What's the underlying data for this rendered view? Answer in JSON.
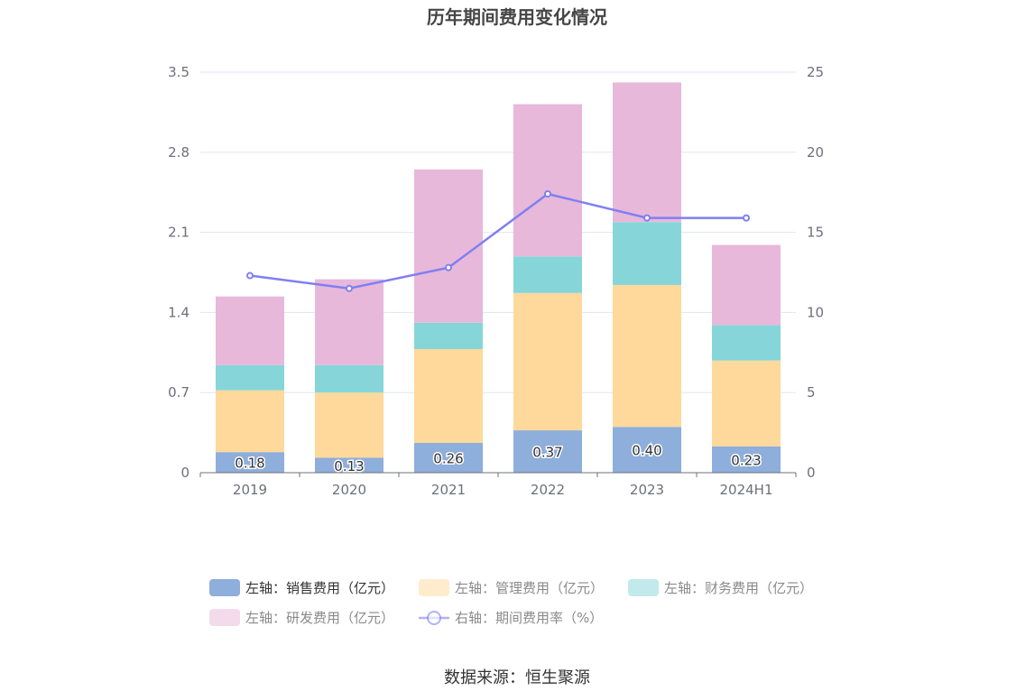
{
  "chart_data": {
    "type": "bar",
    "stacked": true,
    "title": "历年期间费用变化情况",
    "categories": [
      "2019",
      "2020",
      "2021",
      "2022",
      "2023",
      "2024H1"
    ],
    "series": [
      {
        "name": "左轴：销售费用（亿元）",
        "axis": "left",
        "type": "bar",
        "color": "#8eaedb",
        "values": [
          0.18,
          0.13,
          0.26,
          0.37,
          0.4,
          0.23
        ],
        "show_labels": true
      },
      {
        "name": "左轴：管理费用（亿元）",
        "axis": "left",
        "type": "bar",
        "color": "#fed99b",
        "values": [
          0.54,
          0.57,
          0.82,
          1.2,
          1.24,
          0.75
        ]
      },
      {
        "name": "左轴：财务费用（亿元）",
        "axis": "left",
        "type": "bar",
        "color": "#86d6d9",
        "values": [
          0.22,
          0.24,
          0.23,
          0.32,
          0.55,
          0.31
        ]
      },
      {
        "name": "左轴：研发费用（亿元）",
        "axis": "left",
        "type": "bar",
        "color": "#e7b8da",
        "values": [
          0.6,
          0.75,
          1.34,
          1.33,
          1.22,
          0.7
        ]
      },
      {
        "name": "右轴：期间费用率（%）",
        "axis": "right",
        "type": "line",
        "color": "#7f7ff2",
        "values": [
          12.3,
          11.5,
          12.8,
          17.4,
          15.9,
          15.9
        ]
      }
    ],
    "y_left": {
      "min": 0,
      "max": 3.5,
      "ticks": [
        "0",
        "0.7",
        "1.4",
        "2.1",
        "2.8",
        "3.5"
      ]
    },
    "y_right": {
      "min": 0,
      "max": 25,
      "ticks": [
        "0",
        "5",
        "10",
        "15",
        "20",
        "25"
      ]
    },
    "grid": true,
    "legend_position": "bottom"
  },
  "source": "数据来源：恒生聚源"
}
